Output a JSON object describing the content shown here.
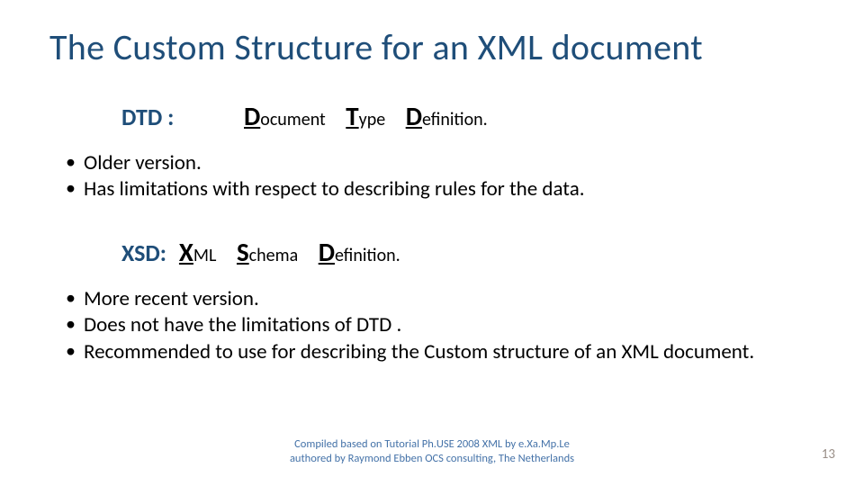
{
  "title": "The Custom  Structure for an XML document",
  "dtd": {
    "label": "DTD :",
    "t1_big": "D",
    "t1_rest": "ocument",
    "t2_big": "T",
    "t2_rest": "ype",
    "t3_big": "D",
    "t3_rest": "efinition.",
    "bullets": [
      "Older version.",
      "Has limitations with respect to describing rules for the data."
    ]
  },
  "xsd": {
    "label": "XSD:",
    "t1_big": "X",
    "t1_rest": "ML",
    "t2_big": "S",
    "t2_rest": "chema",
    "t3_big": "D",
    "t3_rest": "efinition.",
    "bullets": [
      "More recent  version.",
      "Does not have the limitations of DTD .",
      "Recommended to use for describing the Custom structure of an XML document."
    ]
  },
  "footer": {
    "line1": "Compiled based on  Tutorial Ph.USE 2008 XML by e.Xa.Mp.Le",
    "line2": "authored by Raymond Ebben OCS consulting, The Netherlands"
  },
  "page_number": "13",
  "colors": {
    "title": "#1f4e79",
    "accent": "#1f4e79",
    "body": "#000000",
    "footer": "#4472a8",
    "pagenum": "#9a8f88",
    "background": "#ffffff"
  },
  "typography": {
    "title_fontsize": 40,
    "def_label_fontsize": 26,
    "term_big_fontsize": 29,
    "term_rest_fontsize": 20,
    "bullet_fontsize": 23,
    "footer_fontsize": 12.5,
    "pagenum_fontsize": 15,
    "font_family": "Calibri"
  }
}
